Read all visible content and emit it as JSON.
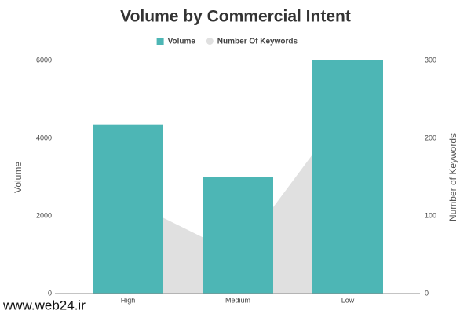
{
  "chart_data": {
    "type": "bar-area",
    "title": "Volume by Commercial Intent",
    "categories": [
      "High",
      "Medium",
      "Low"
    ],
    "series": [
      {
        "name": "Volume",
        "type": "bar",
        "color": "#4db6b5",
        "values": [
          4350,
          3000,
          6000
        ]
      },
      {
        "name": "Number Of Keywords",
        "type": "area",
        "axis": "y2",
        "color": "#e0e0e0",
        "values": [
          120,
          50,
          240
        ]
      }
    ],
    "ylabel": "Volume",
    "y2label": "Number of Keywords",
    "ylim": [
      0,
      6000
    ],
    "yticks": [
      0,
      2000,
      4000,
      6000
    ],
    "y2lim": [
      0,
      300
    ],
    "y2ticks": [
      0,
      100,
      200,
      300
    ],
    "legend": "top"
  },
  "watermark": "www.web24.ir"
}
